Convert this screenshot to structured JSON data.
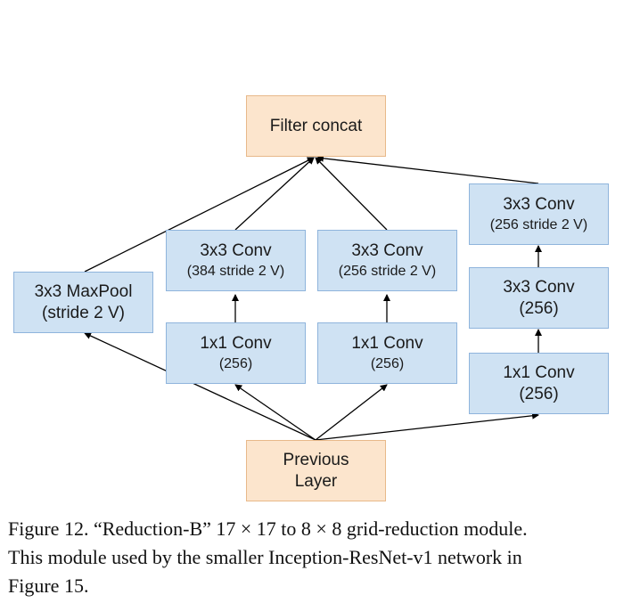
{
  "diagram": {
    "nodes": {
      "filter_concat": {
        "line1": "Filter concat"
      },
      "maxpool": {
        "line1": "3x3 MaxPool",
        "line2": "(stride 2 V)"
      },
      "conv3x3_384": {
        "line1": "3x3 Conv",
        "line2": "(384 stride 2 V)"
      },
      "conv1x1_a": {
        "line1": "1x1 Conv",
        "line2": "(256)"
      },
      "conv3x3_256a": {
        "line1": "3x3 Conv",
        "line2": "(256 stride 2 V)"
      },
      "conv1x1_b": {
        "line1": "1x1 Conv",
        "line2": "(256)"
      },
      "conv3x3_256b": {
        "line1": "3x3 Conv",
        "line2": "(256 stride 2 V)"
      },
      "conv3x3_256c": {
        "line1": "3x3 Conv",
        "line2": "(256)"
      },
      "conv1x1_c": {
        "line1": "1x1 Conv",
        "line2": "(256)"
      },
      "previous_layer": {
        "line1": "Previous",
        "line2": "Layer"
      }
    },
    "colors": {
      "conv_fill": "#cfe2f3",
      "conv_border": "#8fb4dc",
      "io_fill": "#fce5cd",
      "io_border": "#e8b98a",
      "edge": "#000000"
    }
  },
  "caption": {
    "line1": "Figure 12. “Reduction-B” 17 × 17 to 8 × 8 grid-reduction module.",
    "line2": "This module used by the smaller Inception-ResNet-v1 network in",
    "line3": "Figure 15."
  }
}
